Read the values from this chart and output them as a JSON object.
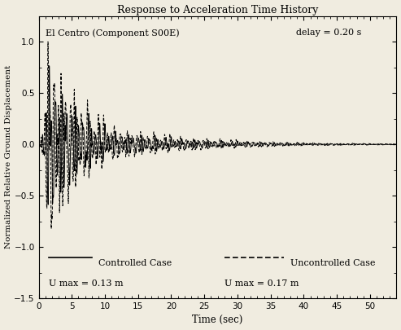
{
  "title": "Response to Acceleration Time History",
  "xlabel": "Time (sec)",
  "ylabel": "Normalized Relative Ground Displacement",
  "annotation_left": "El Centro (Component S00E)",
  "annotation_right": "delay = 0.20 s",
  "legend_controlled": "Controlled Case",
  "legend_uncontrolled": "Uncontrolled Case",
  "umax_controlled": "U max = 0.13 m",
  "umax_uncontrolled": "U max = 0.17 m",
  "xlim": [
    0,
    54
  ],
  "ylim": [
    -1.5,
    1.25
  ],
  "yticks": [
    -1.5,
    -1.0,
    -0.5,
    0.0,
    0.5,
    1.0
  ],
  "xticks": [
    0,
    5,
    10,
    15,
    20,
    25,
    30,
    35,
    40,
    45,
    50
  ],
  "background_color": "#f0ece0",
  "line_color": "#000000",
  "t_end": 54.0,
  "dt": 0.02
}
